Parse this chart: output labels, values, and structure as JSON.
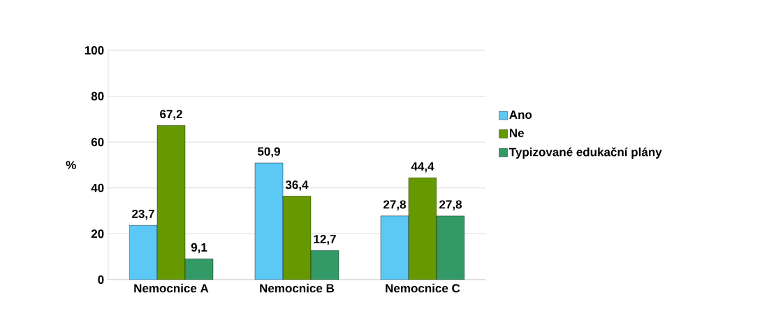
{
  "chart_data": {
    "type": "bar",
    "ylabel": "%",
    "categories": [
      "Nemocnice A",
      "Nemocnice B",
      "Nemocnice C"
    ],
    "series": [
      {
        "name": "Ano",
        "color": "#5bc8f5",
        "values": [
          23.7,
          50.9,
          27.8
        ],
        "value_labels": [
          "23,7",
          "50,9",
          "27,8"
        ]
      },
      {
        "name": "Ne",
        "color": "#669900",
        "values": [
          67.2,
          36.4,
          44.4
        ],
        "value_labels": [
          "67,2",
          "36,4",
          "44,4"
        ]
      },
      {
        "name": "Typizované edukační plány",
        "color": "#339966",
        "values": [
          9.1,
          12.7,
          27.8
        ],
        "value_labels": [
          "9,1",
          "12,7",
          "27,8"
        ]
      }
    ],
    "ylim": [
      0,
      100
    ],
    "yticks": [
      0,
      20,
      40,
      60,
      80,
      100
    ],
    "grid": "y",
    "legend": "right"
  }
}
